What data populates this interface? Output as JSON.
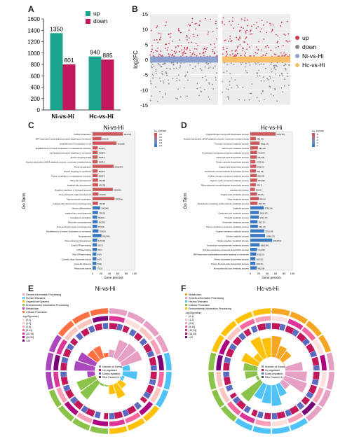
{
  "panel_letters": {
    "a": "A",
    "b": "B",
    "c": "C",
    "d": "D",
    "e": "E",
    "f": "F"
  },
  "colors": {
    "up": "#1aa68e",
    "down": "#c2185b",
    "scatter_up": "#d23a4f",
    "scatter_down": "#888888",
    "band_ni": "#8da0cb",
    "band_hc": "#f6c06b",
    "bar_red": "#c9575b",
    "bar_blue": "#3b78c2"
  },
  "chart_data": [
    {
      "id": "A",
      "type": "bar",
      "categories": [
        "Ni-vs-Hi",
        "Hc-vs-Hi"
      ],
      "series": [
        {
          "name": "up",
          "values": [
            1350,
            940
          ]
        },
        {
          "name": "down",
          "values": [
            801,
            885
          ]
        }
      ],
      "data_labels": [
        [
          "1350",
          "801"
        ],
        [
          "940",
          "885"
        ]
      ],
      "yticks": [
        "0",
        "200",
        "400",
        "600",
        "800",
        "1000",
        "1200",
        "1400",
        "1600"
      ],
      "ylim": [
        0,
        1600
      ],
      "legend": "top-right"
    },
    {
      "id": "B",
      "type": "scatter",
      "categories": [
        "Ni-vs-Hi",
        "Hc-vs-Hi"
      ],
      "ylabel": "log2FC",
      "yticks": [
        "15",
        "10",
        "5",
        "0",
        "-5",
        "-10",
        "-15"
      ],
      "ylim": [
        -15,
        15
      ],
      "legend": [
        {
          "name": "up"
        },
        {
          "name": "down"
        },
        {
          "name": "Ni-vs-Hi"
        },
        {
          "name": "Hc-vs-Hi"
        }
      ]
    },
    {
      "id": "C",
      "type": "bar",
      "orientation": "horizontal",
      "title": "Ni-vs-Hi",
      "ylabel": "Go Term",
      "xlabel": "Gene percent",
      "xticks": [
        "0",
        "20",
        "40",
        "60",
        "80",
        "100"
      ],
      "categories": [
        "Cellular localization",
        "SRP-dependent cotranslational protein targeting to membrane",
        "Establishment of localization in cell",
        "Establishment of protein localization to endoplasmic reticulum",
        "Cotranslational protein targeting to membrane",
        "Protein targeting to ER",
        "Nuclear-transcribed mRNA catabolic process, nonsense-mediated decay",
        "Protein localization",
        "Protein targeting to membrane",
        "Protein localization to endoplasmic reticulum",
        "Wing disc development",
        "Imaginal disc development",
        "Negative regulation of biological process",
        "Post-embryonic organ development",
        "Macromolecule localization",
        "Imaginal disc-derived wing morphogenesis",
        "Neuron differentiation",
        "Imaginal disc morphogenesis",
        "Cytoplasmic translation",
        "Wing disc morphogenesis",
        "Post-embryonic organ morphogenesis",
        "Establishment of protein localization to membrane",
        "Neurogenesis",
        "Post-embryonic development",
        "Small GTPase binding",
        "GTPase binding",
        "Ras GTPase binding",
        "Cytosolic large ribosomal subunit",
        "Cytosolic ribosome",
        "Ribosomal subunit"
      ],
      "values": [
        72,
        21,
        57,
        12,
        12,
        12,
        12,
        50,
        12,
        12,
        13,
        13,
        48,
        14,
        52,
        13,
        18,
        13,
        11,
        12,
        11,
        14,
        21,
        11,
        10,
        10,
        9,
        9,
        9,
        8
      ],
      "value_labels": [
        "58(1758)",
        "69(214)",
        "57(2025)",
        "41(357)",
        "39(357)",
        "39(357)",
        "39(357)",
        "200(1337)",
        "89(437)",
        "80(437)",
        "94(138)",
        "60(138)",
        "93(2050)",
        "60(218)",
        "53(1264)",
        "74(132)",
        "108(148)",
        "70(132)",
        "86(194)",
        "66(138)",
        "70(132)",
        "35(422)",
        "201(548)",
        "117(192)",
        "93(17)",
        "81(7)",
        "86(7)",
        "66(7)",
        "86(9)",
        "77(22)"
      ],
      "legend_title": "log_10(FDR)",
      "legend_ticks": [
        "-4.0",
        "-3.5",
        "-3.0",
        "-2.5",
        "-2.0"
      ]
    },
    {
      "id": "D",
      "type": "bar",
      "orientation": "horizontal",
      "title": "Hc-vs-Hi",
      "ylabel": "Go Term",
      "xlabel": "Gene percent",
      "xticks": [
        "0",
        "20",
        "40",
        "60",
        "80",
        "100"
      ],
      "categories": [
        "Organonitrogen compound biosynthetic process",
        "Nuclear-transcribed mRNA catabolic process, nonsense-mediated decay",
        "Aromatic compound catabolic process",
        "Heterocycle catabolic process",
        "Nucleobase-containing compound catabolic process",
        "Carboxylic acid biosynthetic process",
        "Small molecule biosynthetic process",
        "Organic acid biosynthetic process",
        "Nucleoside monophosphate biosynthetic process",
        "Cellular nitrogen compound catabolic process",
        "Organic cyclic compound catabolic process",
        "Ribonucleoside monophosphate biosynthetic process",
        "translational initiation",
        "Organic acid metabolic process",
        "Drug metabolic process",
        "Nucleobase-containing small molecule metabolic process",
        "Catabolic process",
        "Carboxylic acid metabolic process",
        "Oxoacid metabolic process",
        "Nucleotide metabolic process",
        "Purine-containing compound metabolic process",
        "Organic substance catabolic process",
        "Cellular catabolic process",
        "Single-organism metabolic process",
        "Nucleoside monophosphate metabolic process",
        "Pyridine-containing compound biosynthetic process",
        "SRP-dependent cotranslational protein targeting to membrane",
        "Purine nucleotide biosynthetic process",
        "Purine ribonucleotide biosynthetic process",
        "Monocarboxylic acid metabolic process"
      ],
      "values": [
        60,
        13,
        22,
        18,
        16,
        15,
        12,
        14,
        13,
        15,
        16,
        13,
        11,
        16,
        20,
        17,
        32,
        20,
        20,
        17,
        18,
        33,
        35,
        52,
        22,
        16,
        14,
        12,
        12,
        15
      ],
      "value_labels": [
        "278(1.06)",
        "56(1.06)",
        "250(1.17)",
        "96(4.06)",
        "71(5.07)",
        "65(3.06)",
        "147(1.06)",
        "56(3.06)",
        "90(1.06)",
        "85(9.06)",
        "85(3.06)",
        "90(17)",
        "90(14)",
        "87(2.1)",
        "85(2.0)",
        "83(1.05)",
        "279(2.06)",
        "108(1.12)",
        "103(1.15)",
        "56(1.27)",
        "83(1.27)",
        "226(1.58)",
        "1036(1.57)",
        "903(4.69)",
        "186(2.06)",
        "72(2.06)",
        "93(2.06)",
        "90(2.06)",
        "90(2.06)",
        "98(2.06)"
      ],
      "legend_title": "log_10(FDR)",
      "legend_ticks": [
        "-6",
        "-5",
        "-4",
        "-3",
        "-2"
      ]
    },
    {
      "id": "E",
      "type": "table",
      "variant": "circular",
      "title": "Ni-vs-Hi",
      "subtitle": "Circle",
      "category_legend": [
        "Genetic Information Processing",
        "Human Diseases",
        "Organismal Systems",
        "Environmental Information Processing",
        "Metabolism",
        "Cellular Processes"
      ],
      "category_colors": [
        "#e6a0c4",
        "#4fc3f7",
        "#ffc107",
        "#8bc34a",
        "#ab47bc",
        "#ff7043"
      ],
      "pvalue_legend_title": "-log10(pvalue)",
      "pvalue_legend": [
        "(0,1]",
        "(1,2]",
        "(2,5]",
        "(5,10]",
        "(10,15]",
        "(15,20]",
        ">20"
      ],
      "center_legend": [
        "Number of Genes",
        "Up-regulated",
        "Down-regulated",
        "Rich Factor(0-1)"
      ]
    },
    {
      "id": "F",
      "type": "table",
      "variant": "circular",
      "title": "Hc-vs-Hi",
      "subtitle": "Circle",
      "category_legend": [
        "Metabolism",
        "Genetic Information Processing",
        "Human Diseases",
        "Cellular Processes",
        "Environmental Information Processing"
      ],
      "category_colors": [
        "#f5a623",
        "#e6a0c4",
        "#4fc3f7",
        "#8bc34a",
        "#ffc107"
      ],
      "pvalue_legend_title": "-log10(pvalue)",
      "pvalue_legend": [
        "(0,1]",
        "(1,2]",
        "(2,5]",
        "(5,10]",
        "(10,15]",
        "(15,20]",
        ">20"
      ],
      "center_legend": [
        "Number of Genes",
        "Up-regulated",
        "Down-regulated",
        "Rich Factor(0-1)"
      ]
    }
  ]
}
